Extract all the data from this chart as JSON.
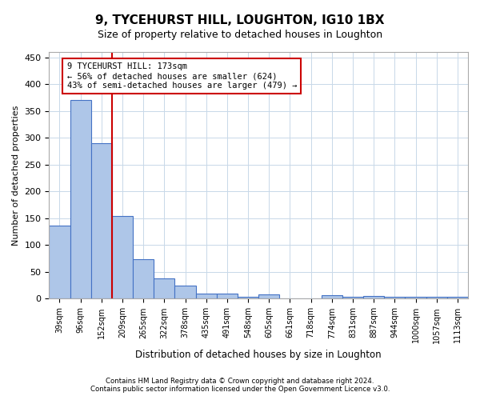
{
  "title": "9, TYCEHURST HILL, LOUGHTON, IG10 1BX",
  "subtitle": "Size of property relative to detached houses in Loughton",
  "xlabel": "Distribution of detached houses by size in Loughton",
  "ylabel": "Number of detached properties",
  "bar_categories": [
    "39sqm",
    "96sqm",
    "152sqm",
    "209sqm",
    "265sqm",
    "322sqm",
    "378sqm",
    "435sqm",
    "491sqm",
    "548sqm",
    "605sqm",
    "661sqm",
    "718sqm",
    "774sqm",
    "831sqm",
    "887sqm",
    "944sqm",
    "1000sqm",
    "1057sqm",
    "1113sqm"
  ],
  "bar_values": [
    136,
    370,
    290,
    155,
    74,
    38,
    25,
    10,
    10,
    3,
    8,
    1,
    1,
    6,
    3,
    5,
    3,
    4,
    3,
    4
  ],
  "bar_color": "#aec6e8",
  "bar_edge_color": "#4472c4",
  "vline_x": 2.5,
  "vline_color": "#cc0000",
  "annotation_line1": "9 TYCEHURST HILL: 173sqm",
  "annotation_line2": "← 56% of detached houses are smaller (624)",
  "annotation_line3": "43% of semi-detached houses are larger (479) →",
  "annotation_box_color": "#cc0000",
  "ylim": [
    0,
    460
  ],
  "yticks": [
    0,
    50,
    100,
    150,
    200,
    250,
    300,
    350,
    400,
    450
  ],
  "footer_line1": "Contains HM Land Registry data © Crown copyright and database right 2024.",
  "footer_line2": "Contains public sector information licensed under the Open Government Licence v3.0.",
  "bg_color": "#ffffff",
  "grid_color": "#c8d8e8"
}
